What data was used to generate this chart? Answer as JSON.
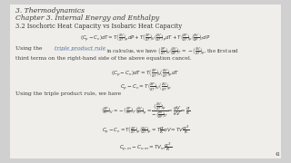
{
  "bg_color": "#d0d0d0",
  "page_bg": "#f0eeea",
  "title1": "3. Thermodynamics",
  "title2": "Chapter 3. Internal Energy and Enthalpy",
  "section": "3.2 Isochoric Heat Capacity vs Isobaric Heat Capacity",
  "text_color": "#3a3a3a",
  "link_color": "#4a6fa0",
  "font_size_title": 5.5,
  "font_size_body": 4.8,
  "font_size_eq": 4.8
}
